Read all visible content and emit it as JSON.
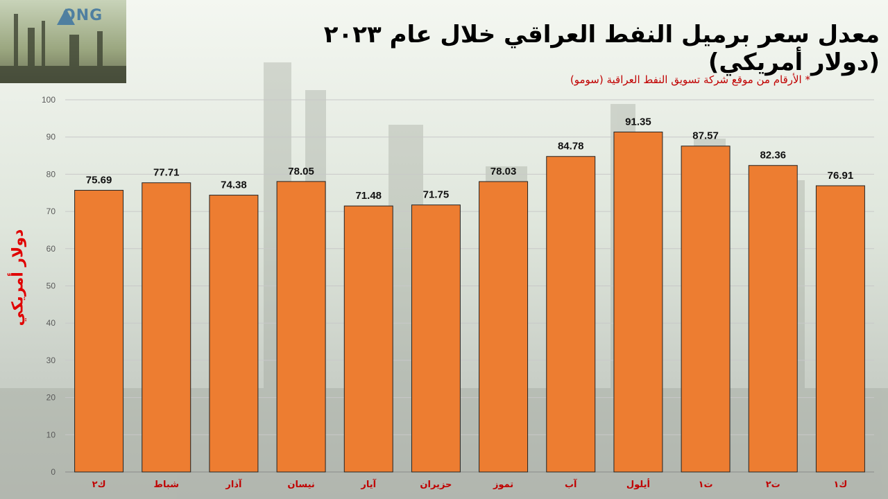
{
  "title": "معدل سعر برميل النفط العراقي خلال عام ٢٠٢٣ (دولار أمريكي)",
  "subtitle": "* الأرقام من موقع شركة تسويق النفط العراقية (سومو)",
  "logo": {
    "text": "ONG"
  },
  "colors": {
    "bar": "#ED7D31",
    "axis_label": "#e00000",
    "title": "#000000",
    "subtitle": "#c00000",
    "category_label": "#c00000"
  },
  "chart_data": {
    "type": "bar",
    "title": "معدل سعر برميل النفط العراقي خلال عام ٢٠٢٣ (دولار أمريكي)",
    "ylabel": "دولار أمريكي",
    "xlabel": "",
    "ylim": [
      0,
      100
    ],
    "yticks": [
      0,
      10,
      20,
      30,
      40,
      50,
      60,
      70,
      80,
      90,
      100
    ],
    "grid": true,
    "categories": [
      "ك٢",
      "شباط",
      "آذار",
      "نيسان",
      "آيار",
      "حزيران",
      "تموز",
      "آب",
      "أيلول",
      "ت١",
      "ت٢",
      "ك١"
    ],
    "values": [
      75.69,
      77.71,
      74.38,
      78.05,
      71.48,
      71.75,
      78.03,
      84.78,
      91.35,
      87.57,
      82.36,
      76.91
    ],
    "data_labels": [
      "75.69",
      "77.71",
      "74.38",
      "78.05",
      "71.48",
      "71.75",
      "78.03",
      "84.78",
      "91.35",
      "87.57",
      "82.36",
      "76.91"
    ]
  }
}
